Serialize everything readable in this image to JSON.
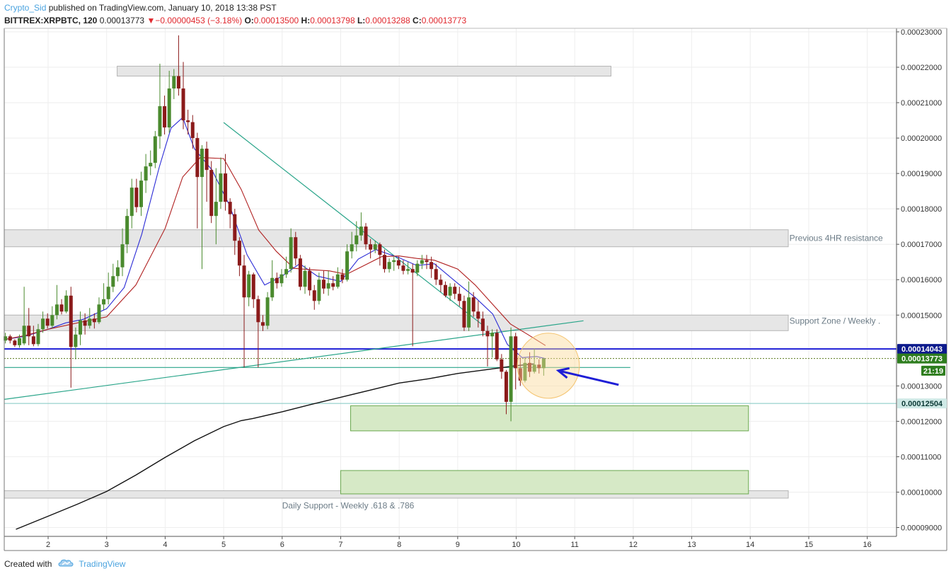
{
  "header": {
    "author": "Crypto_Sid",
    "published_text": " published on TradingView.com, January 10, 2018 13:38 PST",
    "symbol": "BITTREX:XRPBTC, 120",
    "last": "0.00013773",
    "arrow": "▼",
    "change": "−0.00000453 (−3.18%)",
    "o_label": "O:",
    "o_val": "0.00013500",
    "h_label": "H:",
    "h_val": "0.00013798",
    "l_label": "L:",
    "l_val": "0.00013288",
    "c_label": "C:",
    "c_val": "0.00013773"
  },
  "footer": {
    "created_text": "Created with",
    "brand": "TradingView",
    "logo_icon": "tradingview-cloud-icon"
  },
  "colors": {
    "up": "#4a8a2e",
    "down": "#8b1a1a",
    "ema_fast": "#2b2bd6",
    "ema_slow": "#b02020",
    "ma_long": "#111111",
    "trendline": "#2aa58a",
    "blue_level": "#1e1ed6",
    "zone_gray": "#e6e6e6",
    "zone_green": "#d6e9c6",
    "badge_dark": "#2e7d1e",
    "badge_blue": "#0c1a8c"
  },
  "chart_data": {
    "type": "candlestick",
    "y_range": [
      8.75e-05,
      0.000231
    ],
    "x_range": [
      1.25,
      16.5
    ],
    "x_ticks": [
      "2",
      "3",
      "4",
      "5",
      "6",
      "7",
      "8",
      "9",
      "10",
      "11",
      "12",
      "13",
      "14",
      "15",
      "16"
    ],
    "y_ticks": [
      "0.00023000",
      "0.00022000",
      "0.00021000",
      "0.00020000",
      "0.00019000",
      "0.00018000",
      "0.00017000",
      "0.00016000",
      "0.00015000",
      "0.00013000",
      "0.00012000",
      "0.00011000",
      "0.00010000",
      "0.00009000"
    ],
    "price_badges": [
      {
        "label": "0.00014043",
        "value": 0.00014043,
        "style": "blue"
      },
      {
        "label": "0.00013773",
        "value": 0.00013773,
        "style": "green"
      },
      {
        "label": "21:19",
        "value": 0.0001343,
        "style": "green"
      },
      {
        "label": "0.00012504",
        "value": 0.00012504,
        "style": "teal"
      }
    ],
    "gray_zones": [
      {
        "x1": 3.18,
        "x2": 11.62,
        "y1": 0.0002175,
        "y2": 0.0002203
      },
      {
        "x1": 1.25,
        "x2": 14.65,
        "y1": 0.0001693,
        "y2": 0.0001741
      },
      {
        "x1": 1.25,
        "x2": 14.65,
        "y1": 0.0001456,
        "y2": 0.00015
      },
      {
        "x1": 1.25,
        "x2": 14.65,
        "y1": 9.83e-05,
        "y2": 0.0001004
      }
    ],
    "green_zones": [
      {
        "x1": 7.17,
        "x2": 13.97,
        "y1": 0.0001173,
        "y2": 0.0001244
      },
      {
        "x1": 7.0,
        "x2": 13.97,
        "y1": 9.95e-05,
        "y2": 0.0001061
      }
    ],
    "annotations": [
      {
        "text": "Previous 4HR resistance",
        "x": 14.67,
        "y": 0.0001717
      },
      {
        "text": "Support Zone /  Weekly .",
        "x": 14.67,
        "y": 0.0001484
      },
      {
        "text": "Daily Support - Weekly .618 & .786",
        "x": 6.0,
        "y": 9.62e-05
      }
    ],
    "trendlines": [
      {
        "x1": 5.0,
        "y1": 0.0002044,
        "x2": 9.45,
        "y2": 0.0001469
      },
      {
        "x1": 1.25,
        "y1": 0.0001262,
        "x2": 11.15,
        "y2": 0.0001484
      },
      {
        "x1": 1.25,
        "y1": 0.0001352,
        "x2": 11.95,
        "y2": 0.0001352
      }
    ],
    "horizontal_lines": [
      {
        "value": 0.00014043,
        "style": "blue"
      },
      {
        "value": 0.00013773,
        "style": "dotted"
      },
      {
        "value": 0.00012504,
        "style": "teal"
      }
    ],
    "arrow": {
      "x1": 11.75,
      "y1": 0.0001303,
      "x2": 10.72,
      "y2": 0.0001343
    },
    "highlight": {
      "cx": 10.55,
      "cy": 0.0001357,
      "rx": 0.53,
      "ry": 9.2e-06
    },
    "series": [
      {
        "name": "",
        "type": "ema",
        "x": [
          1.25,
          1.6,
          2.0,
          2.3,
          2.6,
          3.0,
          3.3,
          3.6,
          3.9,
          4.1,
          4.3,
          4.5,
          4.8,
          5.1,
          5.4,
          5.7,
          6.0,
          6.3,
          6.6,
          7.0,
          7.3,
          7.6,
          8.0,
          8.3,
          8.6,
          9.0,
          9.3,
          9.6,
          9.85,
          10.1,
          10.35,
          10.5
        ],
        "y": [
          0.0001431,
          0.000144,
          0.000146,
          0.0001478,
          0.0001488,
          0.0001518,
          0.0001578,
          0.0001728,
          0.0001918,
          0.0002028,
          0.0002058,
          0.000197,
          0.000191,
          0.000181,
          0.000167,
          0.0001585,
          0.000161,
          0.0001645,
          0.000161,
          0.0001595,
          0.0001658,
          0.0001685,
          0.0001662,
          0.000164,
          0.0001645,
          0.000159,
          0.000155,
          0.0001503,
          0.0001417,
          0.000138,
          0.0001383,
          0.0001377
        ]
      },
      {
        "name": "",
        "type": "ema",
        "x": [
          1.25,
          1.6,
          2.0,
          2.5,
          3.0,
          3.5,
          4.0,
          4.3,
          4.6,
          5.0,
          5.3,
          5.6,
          5.9,
          6.2,
          6.5,
          6.8,
          7.1,
          7.4,
          7.7,
          8.0,
          8.3,
          8.6,
          9.0,
          9.3,
          9.6,
          9.9,
          10.2,
          10.5
        ],
        "y": [
          0.0001431,
          0.0001442,
          0.000146,
          0.0001478,
          0.0001495,
          0.0001585,
          0.0001745,
          0.000189,
          0.0001945,
          0.0001942,
          0.0001855,
          0.000174,
          0.000168,
          0.0001632,
          0.0001628,
          0.0001625,
          0.0001615,
          0.000164,
          0.0001665,
          0.0001667,
          0.000166,
          0.0001655,
          0.000163,
          0.0001585,
          0.000153,
          0.0001475,
          0.0001445,
          0.0001414
        ]
      },
      {
        "name": "",
        "type": "sma",
        "x": [
          1.45,
          2.0,
          2.5,
          3.0,
          3.5,
          4.0,
          4.5,
          5.0,
          5.3,
          5.5,
          6.0,
          6.5,
          7.0,
          7.5,
          8.0,
          8.5,
          9.0,
          9.5,
          10.0,
          10.3
        ],
        "y": [
          8.95e-05,
          9.32e-05,
          9.66e-05,
          0.0001002,
          0.0001048,
          0.0001098,
          0.0001145,
          0.0001185,
          0.0001202,
          0.0001208,
          0.0001227,
          0.0001248,
          0.0001268,
          0.0001288,
          0.0001308,
          0.000132,
          0.0001335,
          0.0001346,
          0.0001357,
          0.0001362
        ]
      }
    ],
    "candles": [
      [
        1.27,
        0.0001428,
        0.000144,
        0.000145,
        0.000142
      ],
      [
        1.35,
        0.000144,
        0.0001428,
        0.0001445,
        0.000142
      ],
      [
        1.43,
        0.0001428,
        0.0001415,
        0.0001432,
        0.000141
      ],
      [
        1.51,
        0.0001415,
        0.0001435,
        0.0001445,
        0.0001408
      ],
      [
        1.59,
        0.000142,
        0.000147,
        0.000158,
        0.0001415
      ],
      [
        1.67,
        0.000147,
        0.000144,
        0.000152,
        0.0001415
      ],
      [
        1.75,
        0.000144,
        0.0001418,
        0.000147,
        0.0001412
      ],
      [
        1.83,
        0.0001418,
        0.000146,
        0.0001475,
        0.0001412
      ],
      [
        1.91,
        0.000146,
        0.000149,
        0.000151,
        0.000145
      ],
      [
        1.99,
        0.000149,
        0.000147,
        0.0001505,
        0.0001462
      ],
      [
        2.07,
        0.000147,
        0.00015,
        0.0001525,
        0.0001462
      ],
      [
        2.15,
        0.00015,
        0.000153,
        0.0001585,
        0.0001488
      ],
      [
        2.23,
        0.000153,
        0.000151,
        0.0001545,
        0.0001502
      ],
      [
        2.31,
        0.000151,
        0.0001555,
        0.000157,
        0.0001505
      ],
      [
        2.39,
        0.0001555,
        0.000141,
        0.000158,
        0.0001295
      ],
      [
        2.47,
        0.000141,
        0.0001445,
        0.0001465,
        0.0001375
      ],
      [
        2.55,
        0.0001445,
        0.0001485,
        0.000151,
        0.0001415
      ],
      [
        2.63,
        0.0001485,
        0.000147,
        0.0001505,
        0.0001445
      ],
      [
        2.71,
        0.000147,
        0.000149,
        0.000152,
        0.0001462
      ],
      [
        2.79,
        0.000149,
        0.000148,
        0.0001505,
        0.0001462
      ],
      [
        2.87,
        0.000148,
        0.000153,
        0.000155,
        0.0001475
      ],
      [
        2.95,
        0.000153,
        0.0001545,
        0.000159,
        0.0001515
      ],
      [
        3.03,
        0.0001545,
        0.000158,
        0.000162,
        0.000153
      ],
      [
        3.11,
        0.000158,
        0.000161,
        0.0001645,
        0.0001565
      ],
      [
        3.19,
        0.000161,
        0.0001635,
        0.0001655,
        0.0001595
      ],
      [
        3.27,
        0.0001635,
        0.00017,
        0.0001745,
        0.000161
      ],
      [
        3.35,
        0.00017,
        0.000178,
        0.00018,
        0.0001675
      ],
      [
        3.43,
        0.000178,
        0.000186,
        0.0001885,
        0.0001745
      ],
      [
        3.51,
        0.000186,
        0.0001805,
        0.0001885,
        0.000179
      ],
      [
        3.59,
        0.0001805,
        0.000188,
        0.0001905,
        0.000178
      ],
      [
        3.67,
        0.000188,
        0.000192,
        0.0001955,
        0.0001845
      ],
      [
        3.75,
        0.000192,
        0.000193,
        0.0001965,
        0.0001895
      ],
      [
        3.83,
        0.000193,
        0.0002005,
        0.000202,
        0.0001915
      ],
      [
        3.91,
        0.0002005,
        0.000209,
        0.000221,
        0.000197
      ],
      [
        3.99,
        0.000209,
        0.000203,
        0.000212,
        0.000201
      ],
      [
        4.07,
        0.000203,
        0.000214,
        0.000219,
        0.0002015
      ],
      [
        4.15,
        0.000214,
        0.0002175,
        0.0002195,
        0.000211
      ],
      [
        4.23,
        0.0002175,
        0.000214,
        0.000229,
        0.000212
      ],
      [
        4.31,
        0.000214,
        0.000205,
        0.0002215,
        0.0002025
      ],
      [
        4.39,
        0.000205,
        0.0002045,
        0.000208,
        0.000201
      ],
      [
        4.47,
        0.0002045,
        0.0002,
        0.0002065,
        0.000197
      ],
      [
        4.55,
        0.0002,
        0.000189,
        0.0002015,
        0.0001745
      ],
      [
        4.63,
        0.000189,
        0.000197,
        0.000198,
        0.000163
      ],
      [
        4.71,
        0.000197,
        0.000191,
        0.000199,
        0.000182
      ],
      [
        4.79,
        0.000191,
        0.000178,
        0.0001935,
        0.000176
      ],
      [
        4.87,
        0.000178,
        0.000182,
        0.0001915,
        0.00017
      ],
      [
        4.95,
        0.000182,
        0.00019,
        0.0001945,
        0.00018
      ],
      [
        5.03,
        0.00019,
        0.000182,
        0.0001955,
        0.0001795
      ],
      [
        5.11,
        0.000182,
        0.0001785,
        0.000183,
        0.0001745
      ],
      [
        5.19,
        0.0001785,
        0.000171,
        0.00018,
        0.000167
      ],
      [
        5.27,
        0.000171,
        0.000164,
        0.000172,
        0.000161
      ],
      [
        5.35,
        0.000164,
        0.000155,
        0.000167,
        0.0001352
      ],
      [
        5.43,
        0.000155,
        0.0001615,
        0.0001625,
        0.0001525
      ],
      [
        5.51,
        0.0001615,
        0.0001545,
        0.000162,
        0.000152
      ],
      [
        5.59,
        0.0001545,
        0.000148,
        0.0001555,
        0.0001352
      ],
      [
        5.67,
        0.000148,
        0.000147,
        0.00015,
        0.0001455
      ],
      [
        5.75,
        0.000147,
        0.000155,
        0.0001565,
        0.000146
      ],
      [
        5.83,
        0.000155,
        0.0001605,
        0.0001655,
        0.000154
      ],
      [
        5.91,
        0.0001605,
        0.000159,
        0.000162,
        0.0001575
      ],
      [
        5.99,
        0.000159,
        0.0001615,
        0.000163,
        0.000158
      ],
      [
        6.07,
        0.0001615,
        0.000163,
        0.0001665,
        0.0001605
      ],
      [
        6.15,
        0.000163,
        0.000172,
        0.0001745,
        0.000162
      ],
      [
        6.23,
        0.000172,
        0.000166,
        0.0001735,
        0.000164
      ],
      [
        6.31,
        0.000166,
        0.000158,
        0.000167,
        0.000157
      ],
      [
        6.39,
        0.000158,
        0.0001625,
        0.000164,
        0.000156
      ],
      [
        6.47,
        0.0001625,
        0.000157,
        0.0001635,
        0.0001555
      ],
      [
        6.55,
        0.000157,
        0.000154,
        0.0001585,
        0.0001515
      ],
      [
        6.63,
        0.000154,
        0.00016,
        0.000162,
        0.000153
      ],
      [
        6.71,
        0.00016,
        0.0001575,
        0.0001625,
        0.000156
      ],
      [
        6.79,
        0.0001575,
        0.000159,
        0.0001625,
        0.0001555
      ],
      [
        6.87,
        0.000159,
        0.000158,
        0.000161,
        0.000157
      ],
      [
        6.95,
        0.000158,
        0.0001615,
        0.0001635,
        0.0001575
      ],
      [
        7.03,
        0.0001615,
        0.00016,
        0.000163,
        0.000159
      ],
      [
        7.11,
        0.00016,
        0.000168,
        0.00017,
        0.0001595
      ],
      [
        7.19,
        0.000168,
        0.00017,
        0.0001735,
        0.000166
      ],
      [
        7.27,
        0.00017,
        0.0001725,
        0.0001765,
        0.000168
      ],
      [
        7.35,
        0.0001725,
        0.000175,
        0.000179,
        0.000171
      ],
      [
        7.43,
        0.000175,
        0.00017,
        0.000176,
        0.0001685
      ],
      [
        7.51,
        0.00017,
        0.0001685,
        0.0001715,
        0.000166
      ],
      [
        7.59,
        0.0001685,
        0.00017,
        0.000171,
        0.0001675
      ],
      [
        7.67,
        0.00017,
        0.000167,
        0.0001705,
        0.000164
      ],
      [
        7.75,
        0.000167,
        0.000163,
        0.0001685,
        0.000162
      ],
      [
        7.83,
        0.000163,
        0.000165,
        0.000166,
        0.000162
      ],
      [
        7.91,
        0.000165,
        0.0001655,
        0.0001665,
        0.0001625
      ],
      [
        7.99,
        0.0001655,
        0.000164,
        0.0001665,
        0.000163
      ],
      [
        8.07,
        0.000164,
        0.0001625,
        0.0001655,
        0.0001615
      ],
      [
        8.15,
        0.0001625,
        0.000163,
        0.000165,
        0.0001615
      ],
      [
        8.23,
        0.000163,
        0.000162,
        0.0001645,
        0.0001412
      ],
      [
        8.31,
        0.000162,
        0.0001645,
        0.0001655,
        0.000161
      ],
      [
        8.39,
        0.0001645,
        0.0001655,
        0.000167,
        0.000163
      ],
      [
        8.47,
        0.0001655,
        0.000165,
        0.000167,
        0.000163
      ],
      [
        8.55,
        0.000165,
        0.000163,
        0.0001665,
        0.0001605
      ],
      [
        8.63,
        0.000163,
        0.00016,
        0.0001645,
        0.0001585
      ],
      [
        8.71,
        0.00016,
        0.0001585,
        0.0001615,
        0.0001565
      ],
      [
        8.79,
        0.0001585,
        0.0001555,
        0.0001595,
        0.000155
      ],
      [
        8.87,
        0.0001555,
        0.000158,
        0.000159,
        0.000154
      ],
      [
        8.95,
        0.000158,
        0.000156,
        0.000159,
        0.0001545
      ],
      [
        9.03,
        0.000156,
        0.000154,
        0.000158,
        0.0001525
      ],
      [
        9.11,
        0.000154,
        0.0001465,
        0.0001555,
        0.0001455
      ],
      [
        9.19,
        0.0001465,
        0.000155,
        0.0001595,
        0.0001455
      ],
      [
        9.27,
        0.000155,
        0.000151,
        0.0001565,
        0.0001495
      ],
      [
        9.35,
        0.000151,
        0.000149,
        0.000154,
        0.0001465
      ],
      [
        9.43,
        0.000149,
        0.0001455,
        0.000151,
        0.000144
      ],
      [
        9.51,
        0.0001455,
        0.000144,
        0.000147,
        0.0001355
      ],
      [
        9.59,
        0.000144,
        0.000145,
        0.000146,
        0.000138
      ],
      [
        9.67,
        0.000145,
        0.0001375,
        0.000146,
        0.000137
      ],
      [
        9.75,
        0.0001375,
        0.000134,
        0.000139,
        0.000132
      ],
      [
        9.83,
        0.000134,
        0.0001255,
        0.0001345,
        0.000122
      ],
      [
        9.91,
        0.0001255,
        0.000144,
        0.0001465,
        0.00012
      ],
      [
        9.99,
        0.000144,
        0.000135,
        0.000145,
        0.000129
      ],
      [
        10.07,
        0.000135,
        0.0001315,
        0.000138,
        0.00013
      ],
      [
        10.15,
        0.0001315,
        0.0001365,
        0.000138,
        0.000131
      ],
      [
        10.23,
        0.0001365,
        0.000134,
        0.0001395,
        0.0001325
      ],
      [
        10.31,
        0.000134,
        0.000136,
        0.0001405,
        0.0001335
      ],
      [
        10.39,
        0.000136,
        0.000135,
        0.0001375,
        0.0001335
      ],
      [
        10.47,
        0.000135,
        0.00013773,
        0.00013798,
        0.00013288
      ]
    ]
  }
}
